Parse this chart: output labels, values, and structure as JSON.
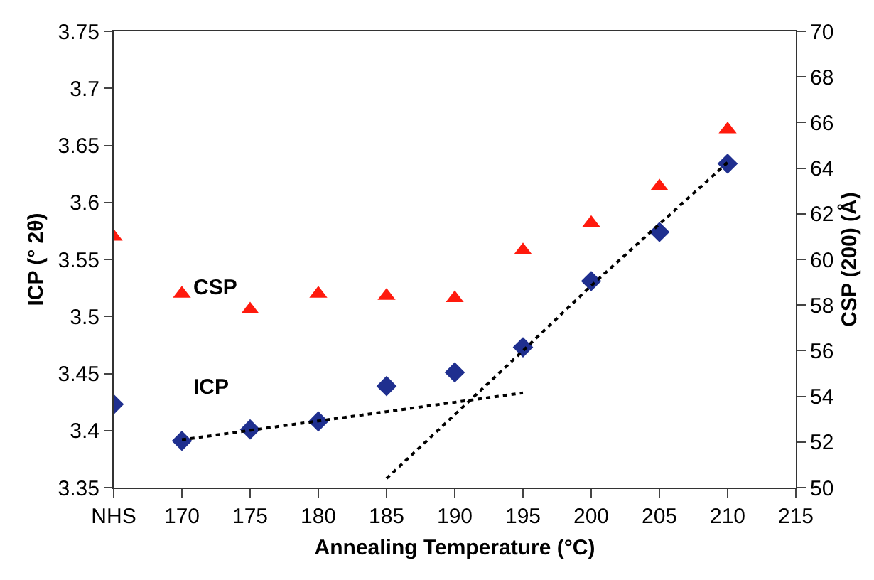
{
  "chart_data": {
    "type": "scatter",
    "xlabel": "Annealing Temperature (°C)",
    "ylabel": "ICP (° 2θ)",
    "y2label": "CSP (200) (Å)",
    "x": [
      165,
      170,
      175,
      180,
      185,
      190,
      195,
      200,
      205,
      210
    ],
    "xlim": [
      165,
      215
    ],
    "xticks": [
      {
        "value": 165,
        "label": "NHS"
      },
      170,
      175,
      180,
      185,
      190,
      195,
      200,
      205,
      210,
      215
    ],
    "ylim": [
      3.35,
      3.75
    ],
    "yticks": [
      3.35,
      3.4,
      3.45,
      3.5,
      3.55,
      3.6,
      3.65,
      3.7,
      3.75
    ],
    "y2lim": [
      50,
      70
    ],
    "y2ticks": [
      50,
      52,
      54,
      56,
      58,
      60,
      62,
      64,
      66,
      68,
      70
    ],
    "legend": false,
    "series": [
      {
        "name": "ICP",
        "color": "#1f2f8f",
        "marker": "diamond",
        "values": [
          3.423,
          3.391,
          3.401,
          3.408,
          3.439,
          3.451,
          3.473,
          3.531,
          3.574,
          3.634
        ]
      },
      {
        "name": "CSP",
        "color": "#ff1a0d",
        "marker": "triangle",
        "axis": "y2",
        "values": [
          61.0,
          58.5,
          57.8,
          58.5,
          58.4,
          58.3,
          60.4,
          61.6,
          63.2,
          65.7
        ]
      },
      {
        "type": "line",
        "color": "#000000",
        "line_style": "dotted",
        "x": [
          170,
          195
        ],
        "values": [
          3.392,
          3.433
        ]
      },
      {
        "type": "line",
        "color": "#000000",
        "line_style": "dotted",
        "x": [
          185,
          195,
          200,
          210
        ],
        "values": [
          3.358,
          3.47,
          3.527,
          3.635
        ]
      }
    ]
  }
}
